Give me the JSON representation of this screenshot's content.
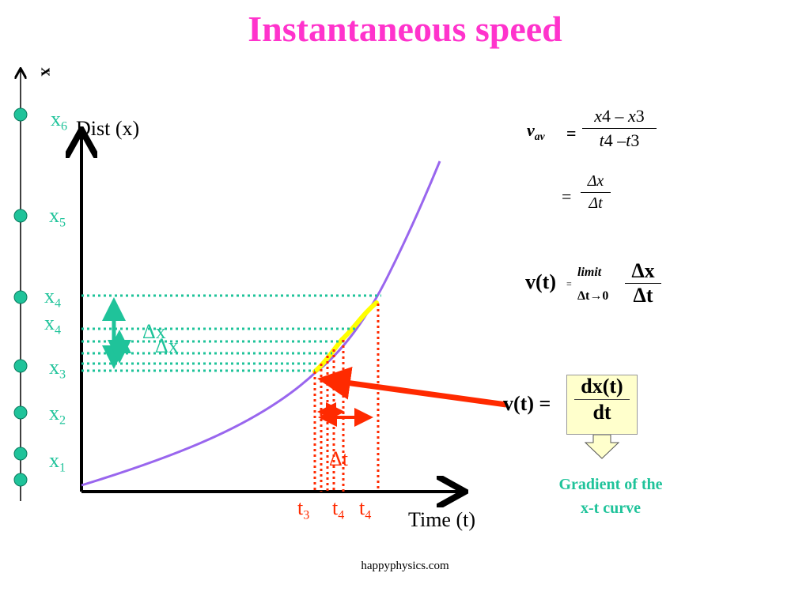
{
  "title": "Instantaneous speed",
  "footer": "happyphysics.com",
  "number_line": {
    "axis_label": "x",
    "markers": [
      {
        "name": "x",
        "sub": "6"
      },
      {
        "name": "x",
        "sub": "5"
      },
      {
        "name": "x",
        "sub": "4"
      },
      {
        "name": "x",
        "sub": "4"
      },
      {
        "name": "x",
        "sub": "3"
      },
      {
        "name": "x",
        "sub": "2"
      },
      {
        "name": "x",
        "sub": "1"
      }
    ]
  },
  "graph": {
    "y_axis_label": "Dist (x)",
    "x_axis_label": "Time (t)",
    "delta_x_1": "Δx",
    "delta_x_2": "Δx",
    "delta_t": "Δt",
    "t_labels": [
      {
        "name": "t",
        "sub": "3"
      },
      {
        "name": "t",
        "sub": "4"
      },
      {
        "name": "t",
        "sub": "4"
      }
    ]
  },
  "equations": {
    "vav_lhs": "v",
    "vav_sub": "av",
    "eq1": "=",
    "num1_a": "x",
    "num1_a_sub": "4",
    "num1_op": " – ",
    "num1_b": "x",
    "num1_b_sub": "3",
    "den1_a": "t",
    "den1_a_sub": "4",
    "den1_op": " –",
    "den1_b": "t",
    "den1_b_sub": "3",
    "eq2": "=",
    "num2": "Δx",
    "den2": "Δt",
    "vt_lhs": "v(t)",
    "vt_eq": "=",
    "limit_word": "limit",
    "limit_cond": "Δt→0",
    "num3": "Δx",
    "den3": "Δt",
    "deriv_lhs": "v(t) =",
    "deriv_num": "dx(t)",
    "deriv_den": "dt"
  },
  "gradient_note": [
    "Gradient of the",
    "x-t curve"
  ],
  "colors": {
    "title": "#ff33cc",
    "teal": "#1fc39a",
    "red": "#ff2a00",
    "curve": "#9966ee",
    "highlight": "#ffff00",
    "note_box": "#ffffcc"
  }
}
